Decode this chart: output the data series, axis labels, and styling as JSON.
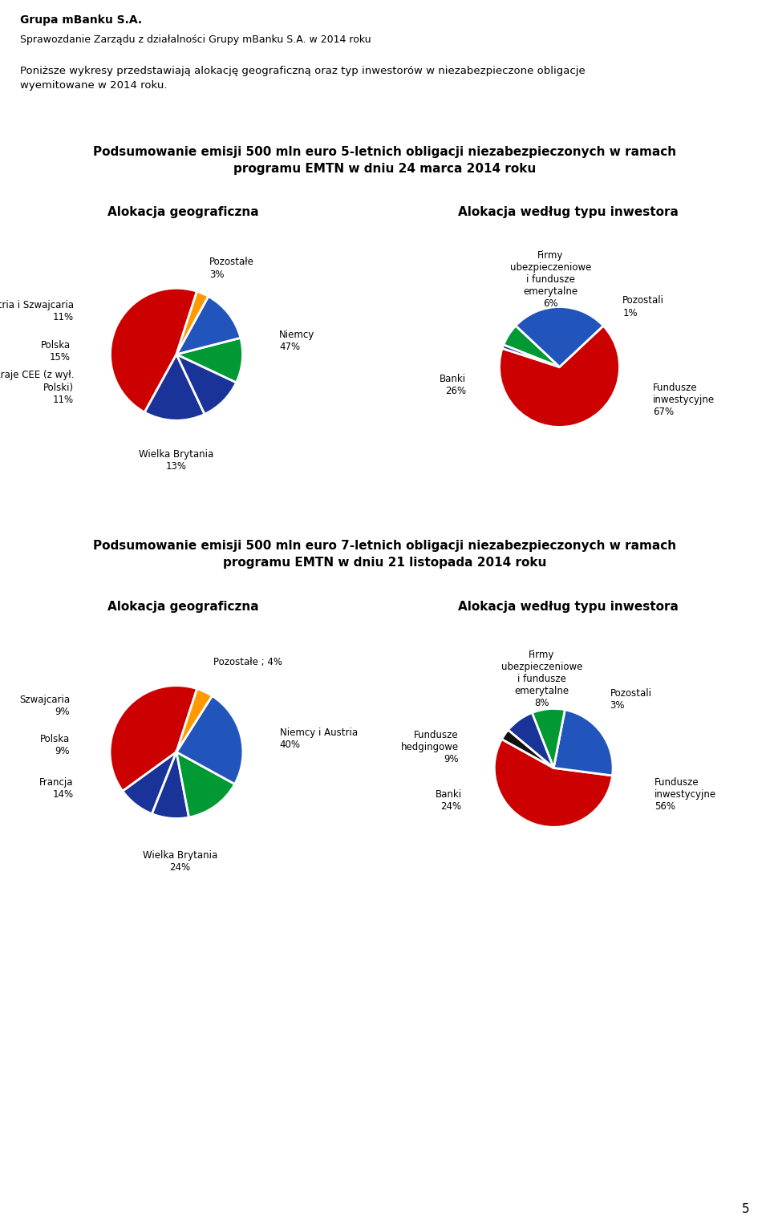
{
  "header_title": "Grupa mBanku S.A.",
  "header_subtitle": "Sprawozdanie Zarządu z działalności Grupy mBanku S.A. w 2014 roku",
  "intro_text": "Poniższe wykresy przedstawiają alokację geograficzną oraz typ inwestorów w niezabezpieczone obligacje\nwyemitowane w 2014 roku.",
  "section1_title": "Podsumowanie emisji 500 mln euro 5-letnich obligacji niezabezpieczonych w ramach\nprogramu EMTN w dniu 24 marca 2014 roku",
  "section2_title": "Podsumowanie emisji 500 mln euro 7-letnich obligacji niezabezpieczonych w ramach\nprogramu EMTN w dniu 21 listopada 2014 roku",
  "geo_label": "Alokacja geograficzna",
  "investor_label": "Alokacja według typu inwestora",
  "pie1_geo_values": [
    47,
    15,
    11,
    11,
    13,
    3
  ],
  "pie1_geo_colors": [
    "#cc0000",
    "#1a3399",
    "#1a3399",
    "#009933",
    "#2255bb",
    "#ff9900"
  ],
  "pie1_geo_startangle": 72,
  "pie1_investor_values": [
    67,
    26,
    6,
    1
  ],
  "pie1_investor_colors": [
    "#cc0000",
    "#2255bb",
    "#009933",
    "#1a3399"
  ],
  "pie1_investor_startangle": 162,
  "pie2_geo_values": [
    40,
    9,
    9,
    14,
    24,
    4
  ],
  "pie2_geo_colors": [
    "#cc0000",
    "#1a3399",
    "#1a3399",
    "#009933",
    "#2255bb",
    "#ff9900"
  ],
  "pie2_geo_startangle": 72,
  "pie2_investor_values": [
    56,
    24,
    9,
    8,
    3
  ],
  "pie2_investor_colors": [
    "#cc0000",
    "#2255bb",
    "#009933",
    "#1a3399",
    "#111111"
  ],
  "pie2_investor_startangle": 151,
  "red_bar_color": "#dd2200",
  "page_number": "5",
  "background_color": "#ffffff",
  "text_color": "#000000",
  "title_color": "#000000"
}
